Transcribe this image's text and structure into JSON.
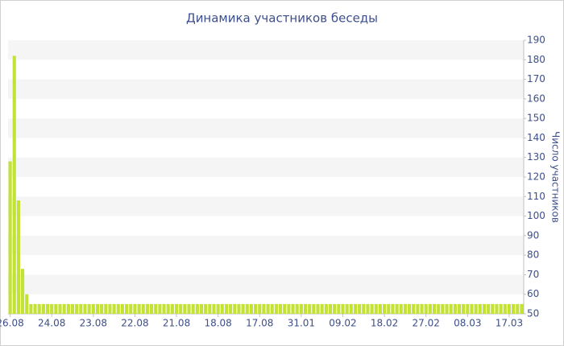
{
  "chart_data": {
    "type": "bar",
    "title": "Динамика участников беседы",
    "y_axis_label": "Число участников",
    "categories": [
      "26.08",
      null,
      null,
      null,
      null,
      null,
      null,
      null,
      null,
      null,
      "24.08",
      null,
      null,
      null,
      null,
      null,
      null,
      null,
      null,
      null,
      "23.08",
      null,
      null,
      null,
      null,
      null,
      null,
      null,
      null,
      null,
      "22.08",
      null,
      null,
      null,
      null,
      null,
      null,
      null,
      null,
      null,
      "21.08",
      null,
      null,
      null,
      null,
      null,
      null,
      null,
      null,
      null,
      "18.08",
      null,
      null,
      null,
      null,
      null,
      null,
      null,
      null,
      null,
      "17.08",
      null,
      null,
      null,
      null,
      null,
      null,
      null,
      null,
      null,
      "31.01",
      null,
      null,
      null,
      null,
      null,
      null,
      null,
      null,
      null,
      "09.02",
      null,
      null,
      null,
      null,
      null,
      null,
      null,
      null,
      null,
      "18.02",
      null,
      null,
      null,
      null,
      null,
      null,
      null,
      null,
      null,
      "27.02",
      null,
      null,
      null,
      null,
      null,
      null,
      null,
      null,
      null,
      "08.03",
      null,
      null,
      null,
      null,
      null,
      null,
      null,
      null,
      null,
      "17.03",
      null,
      null,
      null
    ],
    "values": [
      128,
      182,
      108,
      73,
      60,
      55,
      55,
      55,
      55,
      55,
      55,
      55,
      55,
      55,
      55,
      55,
      55,
      55,
      55,
      55,
      55,
      55,
      55,
      55,
      55,
      55,
      55,
      55,
      55,
      55,
      55,
      55,
      55,
      55,
      55,
      55,
      55,
      55,
      55,
      55,
      55,
      55,
      55,
      55,
      55,
      55,
      55,
      55,
      55,
      55,
      55,
      55,
      55,
      55,
      55,
      55,
      55,
      55,
      55,
      55,
      55,
      55,
      55,
      55,
      55,
      55,
      55,
      55,
      55,
      55,
      55,
      55,
      55,
      55,
      55,
      55,
      55,
      55,
      55,
      55,
      55,
      55,
      55,
      55,
      55,
      55,
      55,
      55,
      55,
      55,
      55,
      55,
      55,
      55,
      55,
      55,
      55,
      55,
      55,
      55,
      55,
      55,
      55,
      55,
      55,
      55,
      55,
      55,
      55,
      55,
      55,
      55,
      55,
      55,
      55,
      55,
      55,
      55,
      55,
      55,
      55,
      55,
      55,
      55
    ],
    "color": "#c3e236",
    "ylim": [
      50,
      190
    ],
    "yticks": [
      50,
      60,
      70,
      80,
      90,
      100,
      110,
      120,
      130,
      140,
      150,
      160,
      170,
      180,
      190
    ],
    "y_axis_side": "right",
    "grid": true
  }
}
